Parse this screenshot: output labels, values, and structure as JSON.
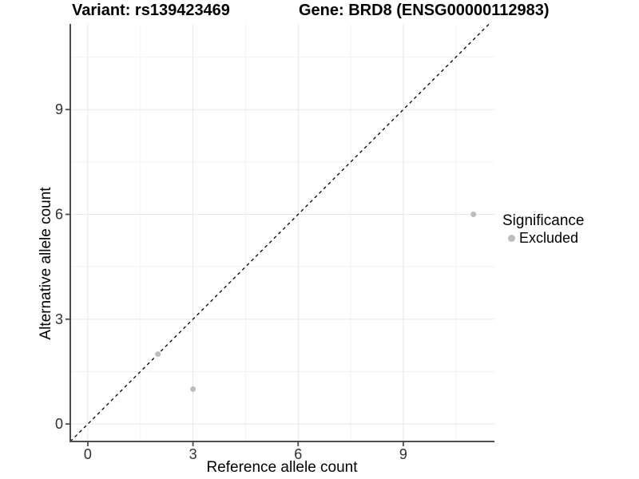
{
  "chart_data": {
    "type": "scatter",
    "titles": {
      "variant": "Variant: rs139423469",
      "gene": "Gene: BRD8 (ENSG00000112983)"
    },
    "xlabel": "Reference allele count",
    "ylabel": "Alternative allele count",
    "xlim": [
      -0.5,
      11.6
    ],
    "ylim": [
      -0.5,
      11.45
    ],
    "x_ticks": [
      0,
      3,
      6,
      9
    ],
    "y_ticks": [
      0,
      3,
      6,
      9
    ],
    "x_minor_gridlines": [
      1.5,
      4.5,
      7.5,
      10.5
    ],
    "y_minor_gridlines": [
      1.5,
      4.5,
      7.5,
      10.5
    ],
    "grid": "major+minor",
    "points": [
      {
        "x": 2,
        "y": 2,
        "significance": "Excluded"
      },
      {
        "x": 3,
        "y": 1,
        "significance": "Excluded"
      },
      {
        "x": 11,
        "y": 6,
        "significance": "Excluded"
      }
    ],
    "reference_line": {
      "type": "identity",
      "slope": 1,
      "intercept": 0,
      "style": "dashed",
      "color": "#000000"
    },
    "legend": {
      "title": "Significance",
      "position": "right",
      "entries": [
        {
          "label": "Excluded",
          "color": "#bdbdbd"
        }
      ]
    },
    "colors": {
      "point": "#bdbdbd",
      "grid_major": "#e7e7e7",
      "grid_minor": "#f2f2f2",
      "axis": "#4d4d4d",
      "tick_text": "#303030",
      "title_text": "#000000"
    }
  }
}
